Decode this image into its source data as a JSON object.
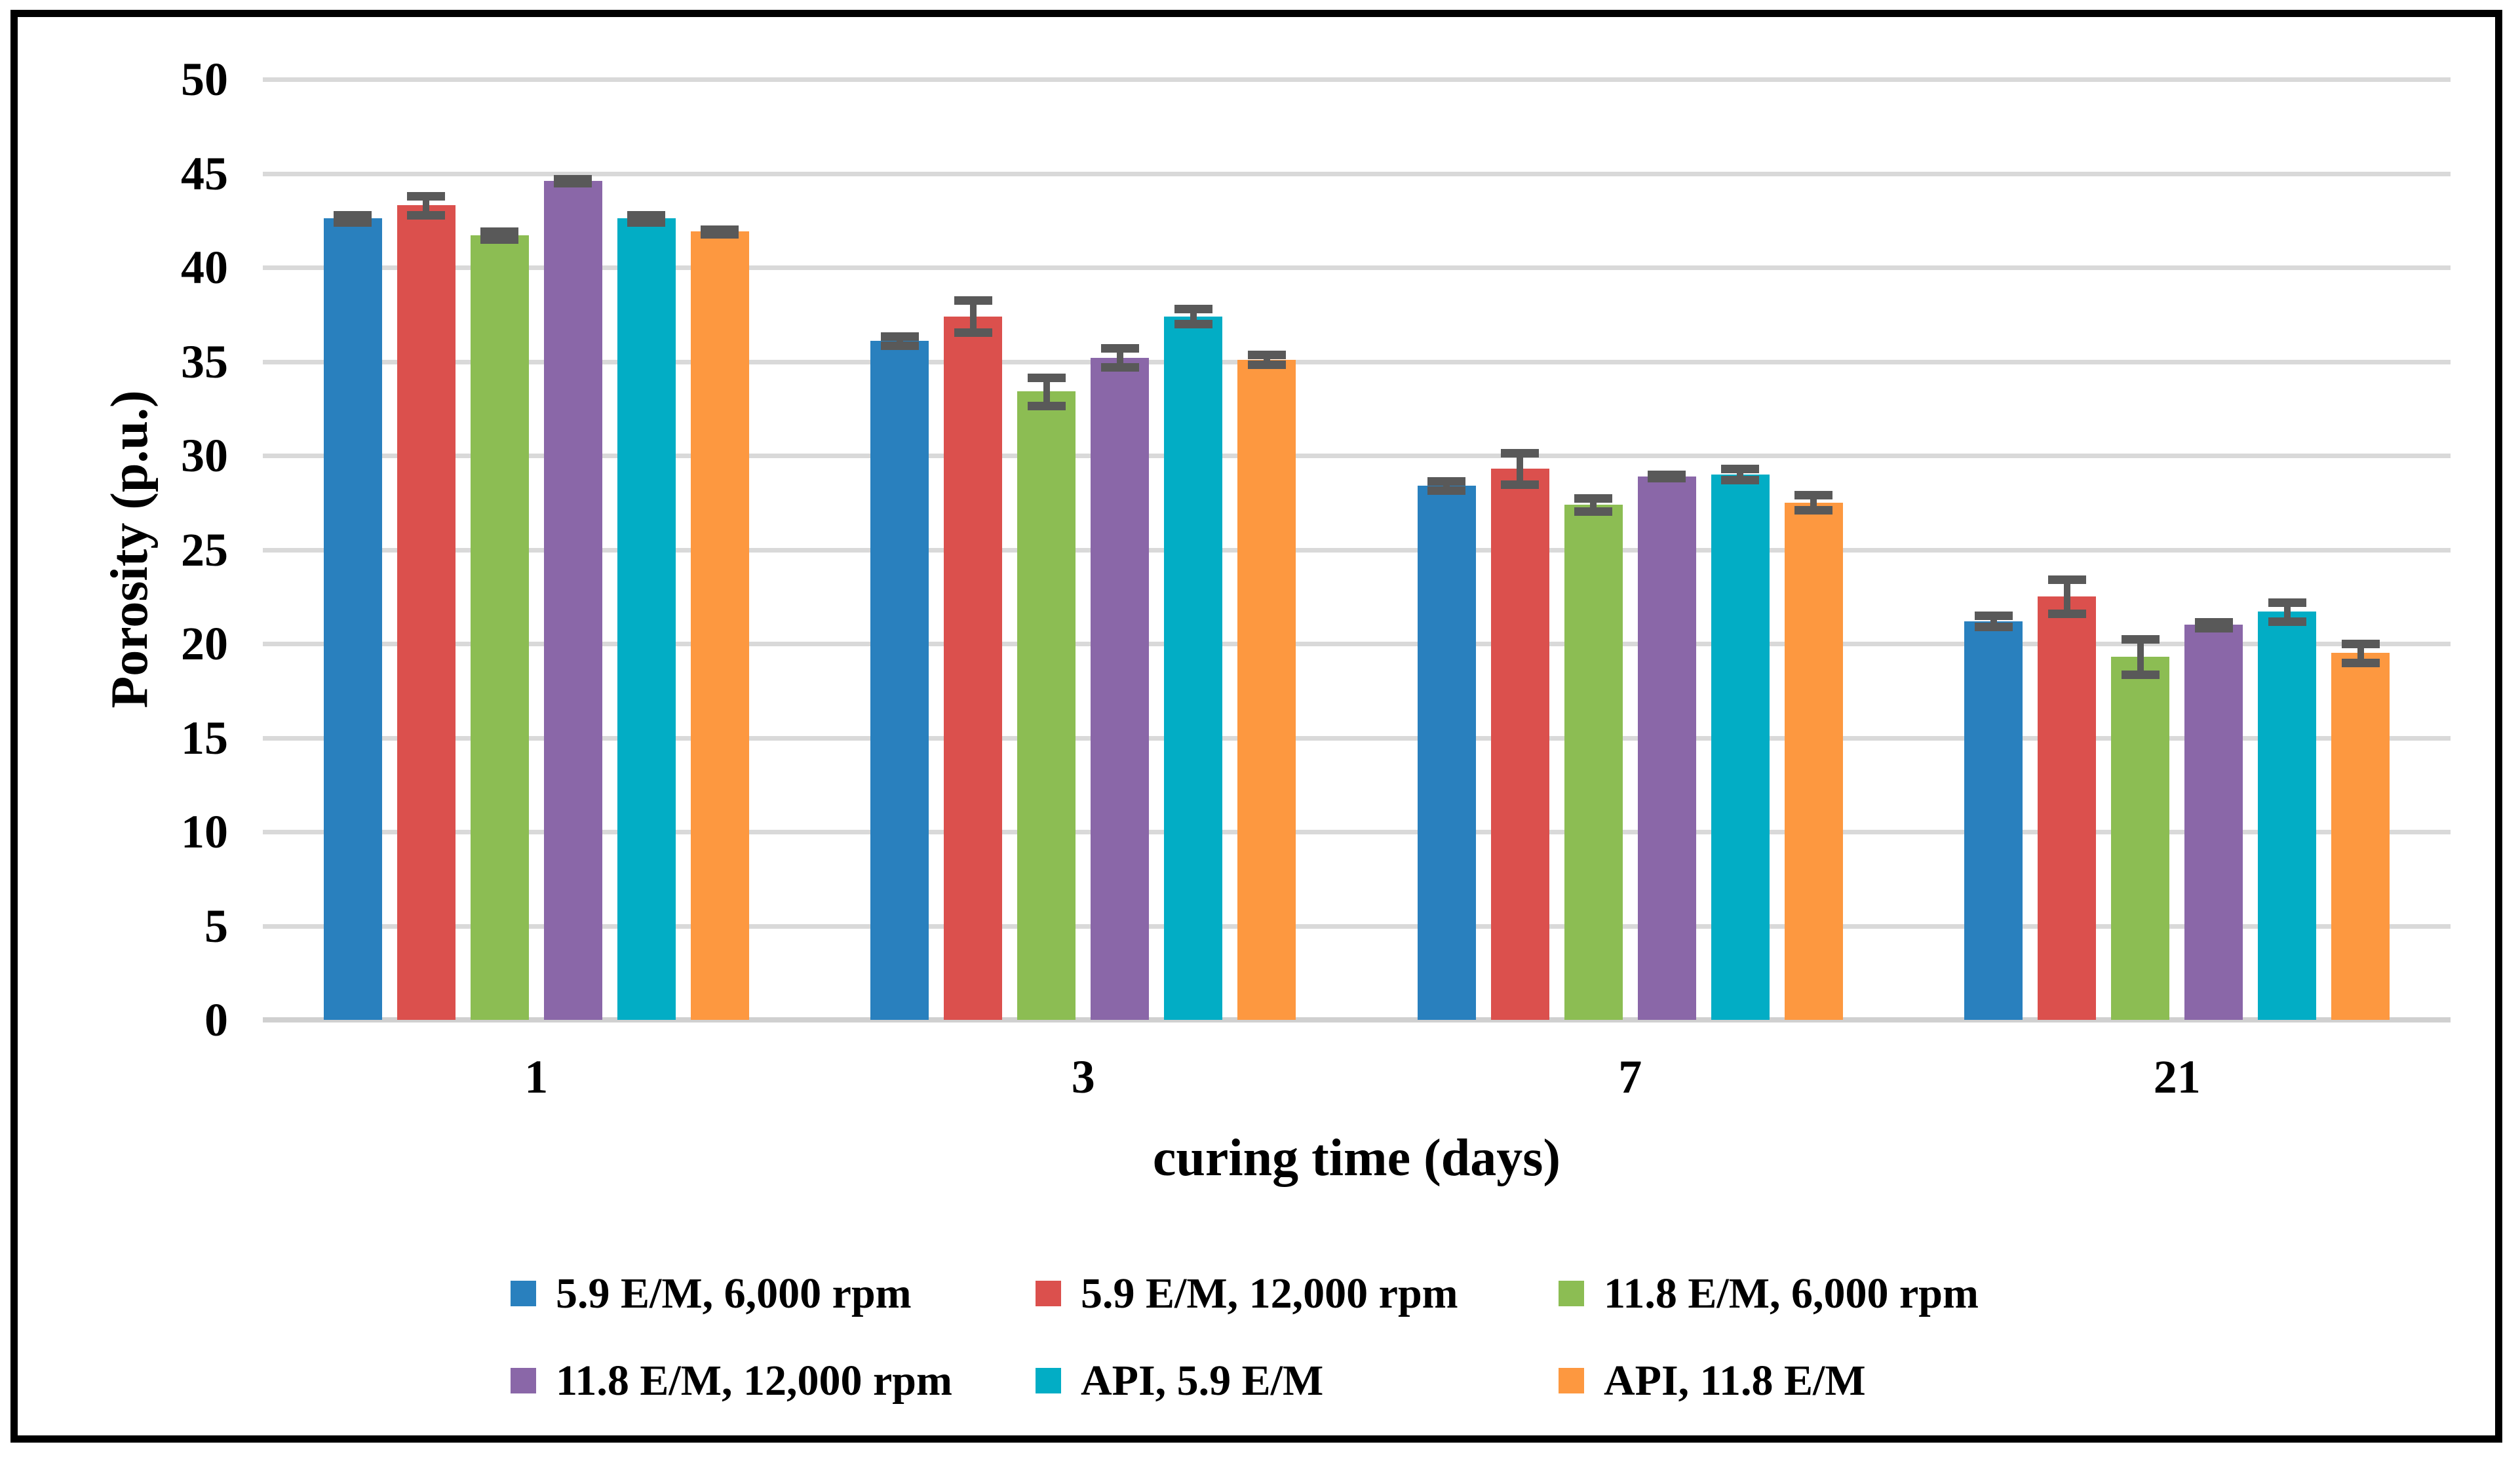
{
  "figure": {
    "background": "#FFFFFF",
    "border_color": "#000000"
  },
  "chart_data": {
    "type": "bar",
    "title": "",
    "xlabel": "curing time (days)",
    "ylabel": "Porosity (p.u.)",
    "categories": [
      "1",
      "3",
      "7",
      "21"
    ],
    "series": [
      {
        "name": "5.9 E/M, 6,000 rpm",
        "color": "#2980BE",
        "values": [
          42.6,
          36.1,
          28.4,
          21.2
        ],
        "errors": [
          0.2,
          0.25,
          0.25,
          0.3
        ]
      },
      {
        "name": "5.9 E/M, 12,000 rpm",
        "color": "#DB504D",
        "values": [
          43.3,
          37.4,
          29.3,
          22.5
        ],
        "errors": [
          0.5,
          0.85,
          0.85,
          0.9
        ]
      },
      {
        "name": "11.8 E/M, 6,000 rpm",
        "color": "#8CBD53",
        "values": [
          41.7,
          33.4,
          27.4,
          19.3
        ],
        "errors": [
          0.2,
          0.75,
          0.35,
          0.95
        ]
      },
      {
        "name": "11.8 E/M, 12,000 rpm",
        "color": "#8A67A8",
        "values": [
          44.6,
          35.2,
          28.9,
          21.0
        ],
        "errors": [
          0.12,
          0.5,
          0.1,
          0.15
        ]
      },
      {
        "name": "API, 5.9 E/M",
        "color": "#02ADC5",
        "values": [
          42.6,
          37.4,
          29.0,
          21.7
        ],
        "errors": [
          0.2,
          0.4,
          0.3,
          0.5
        ]
      },
      {
        "name": "API, 11.8 E/M",
        "color": "#FD9840",
        "values": [
          41.9,
          35.1,
          27.5,
          19.5
        ],
        "errors": [
          0.12,
          0.25,
          0.4,
          0.5
        ]
      }
    ],
    "ylim": [
      0,
      50
    ],
    "ytick_step": 5,
    "grid": true,
    "legend_position": "bottom",
    "colors": {
      "gridline": "#D9D9D9",
      "axis_line": "#D0D0D0",
      "error_bar": "#595959",
      "text": "#000000"
    }
  }
}
